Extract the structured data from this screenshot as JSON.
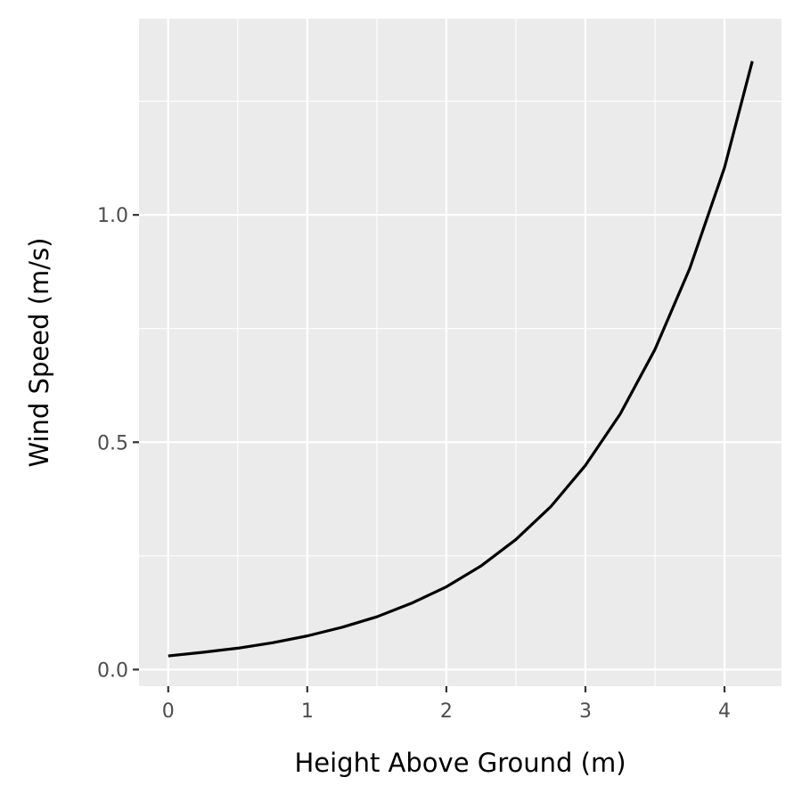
{
  "chart_data": {
    "type": "line",
    "title": "",
    "xlabel": "Height Above Ground (m)",
    "ylabel": "Wind Speed (m/s)",
    "xlim": [
      -0.21,
      4.41
    ],
    "ylim": [
      -0.0365,
      1.4315
    ],
    "x_ticks": [
      0,
      1,
      2,
      3,
      4
    ],
    "x_tick_labels": [
      "0",
      "1",
      "2",
      "3",
      "4"
    ],
    "y_ticks": [
      0.0,
      0.5,
      1.0
    ],
    "y_tick_labels": [
      "0.0",
      "0.5",
      "1.0"
    ],
    "x_minor_ticks": [
      0.5,
      1.5,
      2.5,
      3.5
    ],
    "y_minor_ticks": [
      0.25,
      0.75,
      1.25
    ],
    "grid": true,
    "legend": "none",
    "colors": {
      "panel": "#ebebeb",
      "grid": "#ffffff",
      "line": "#000000",
      "axis_text": "#4d4d4d"
    },
    "series": [
      {
        "x": [
          0.0,
          0.25,
          0.5,
          0.75,
          1.0,
          1.25,
          1.5,
          1.75,
          2.0,
          2.25,
          2.5,
          2.75,
          3.0,
          3.25,
          3.5,
          3.75,
          4.0,
          4.2
        ],
        "values": [
          0.03,
          0.038,
          0.047,
          0.059,
          0.074,
          0.093,
          0.116,
          0.146,
          0.182,
          0.228,
          0.286,
          0.358,
          0.449,
          0.562,
          0.704,
          0.882,
          1.104,
          1.338
        ]
      }
    ]
  }
}
